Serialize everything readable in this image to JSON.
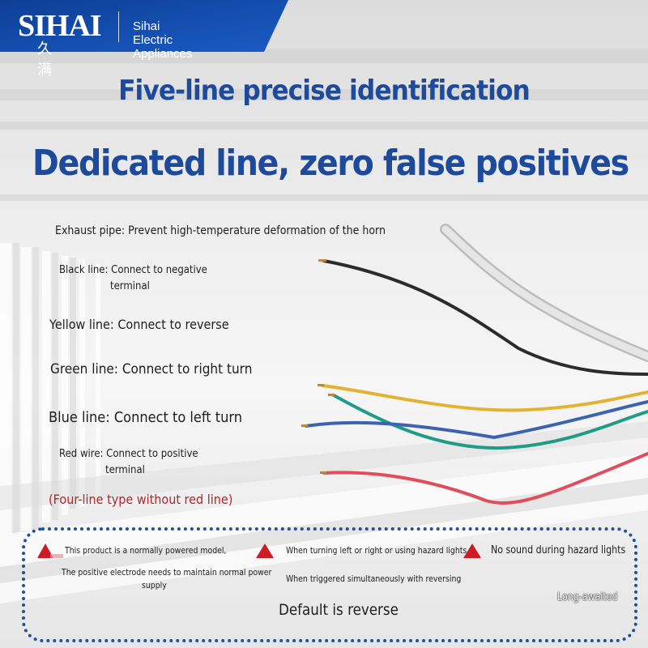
{
  "brand": {
    "logo": "SIHAI",
    "logo_chinese": "久满",
    "company": "Sihai Electric Appliances",
    "accent_color": "#1e4a9c"
  },
  "headline": {
    "line1": "Five-line precise identification",
    "line2": "Dedicated line, zero false positives"
  },
  "labels": {
    "exhaust": "Exhaust pipe: Prevent high-temperature deformation of the horn",
    "black_1": "Black line: Connect to negative",
    "black_2": "terminal",
    "yellow": "Yellow line: Connect to reverse",
    "green": "Green line: Connect to right turn",
    "blue": "Blue line: Connect to left turn",
    "red_1": "Red wire: Connect to positive",
    "red_2": "terminal",
    "note": "(Four-line type without red line)"
  },
  "wires": {
    "black": "#2b2b2b",
    "yellow": "#e2b230",
    "green": "#1f9c87",
    "blue": "#3d63b0",
    "red": "#e04d5c",
    "exhaust": "#d8d8d8"
  },
  "notice": {
    "item1_line1": "This product is a normally powered model,",
    "item1_line2": "The positive electrode needs to maintain normal power",
    "item1_line3": "supply",
    "item2_line1": "When turning left or right or using hazard lights",
    "item2_line2": "When triggered simultaneously with reversing",
    "item3": "No sound during hazard lights",
    "footer": "Default is reverse",
    "warning_icon": "warning-triangle-icon",
    "warning_color": "#cc1d26"
  },
  "watermark": "Long-awaited"
}
